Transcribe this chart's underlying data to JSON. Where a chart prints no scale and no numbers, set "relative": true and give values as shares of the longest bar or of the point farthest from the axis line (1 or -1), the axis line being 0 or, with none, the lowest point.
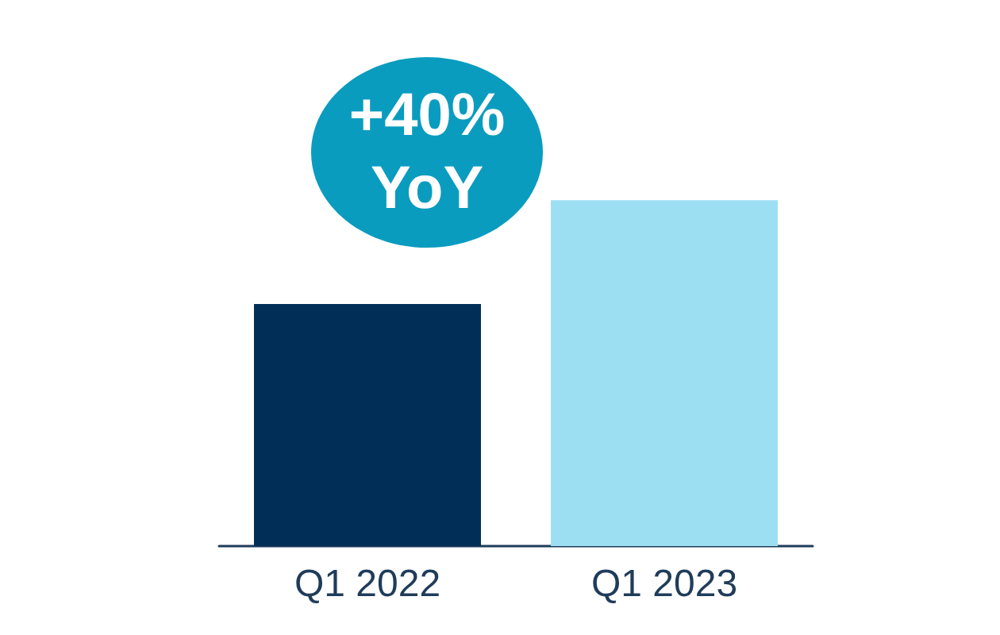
{
  "chart_data": {
    "type": "bar",
    "relative": true,
    "categories": [
      "Q1 2022",
      "Q1 2023"
    ],
    "values": [
      0.7,
      1
    ],
    "colors": [
      "#002e56",
      "#9ddff2"
    ],
    "annotations": [
      "+40%\nYoY"
    ]
  }
}
